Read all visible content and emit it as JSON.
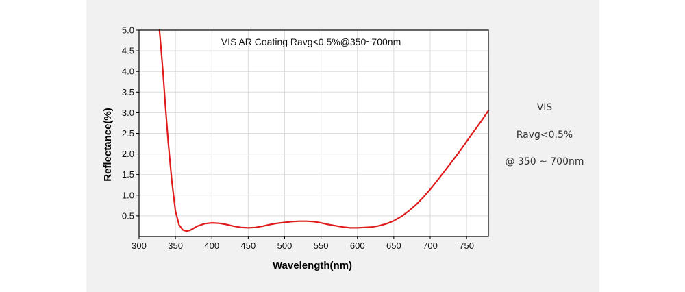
{
  "side_notes": [
    "VIS",
    "Ravg<0.5%",
    "@ 350 ~ 700nm"
  ],
  "colors": {
    "panel_background": "#f1f1f1",
    "plot_background": "#ffffff",
    "curve": "#e01b1b",
    "grid": "#dcdcdc",
    "axis": "#000000"
  },
  "chart_data": {
    "type": "line",
    "title": "VIS AR Coating Ravg<0.5%@350~700nm",
    "xlabel": "Wavelength(nm)",
    "ylabel": "Reflectance(%)",
    "xlim": [
      300,
      780
    ],
    "ylim": [
      0,
      5.0
    ],
    "x_ticks": [
      300,
      350,
      400,
      450,
      500,
      550,
      600,
      650,
      700,
      750
    ],
    "y_ticks": [
      0.5,
      1.0,
      1.5,
      2.0,
      2.5,
      3.0,
      3.5,
      4.0,
      4.5,
      5.0
    ],
    "x_tick_labels": [
      "300",
      "350",
      "400",
      "450",
      "500",
      "550",
      "600",
      "650",
      "700",
      "750"
    ],
    "y_tick_labels": [
      "0.5",
      "1.0",
      "1.5",
      "2.0",
      "2.5",
      "3.0",
      "3.5",
      "4.0",
      "4.5",
      "5.0"
    ],
    "grid": true,
    "legend": "none",
    "series": [
      {
        "x": [
          328,
          330,
          333,
          336,
          340,
          345,
          350,
          355,
          360,
          365,
          370,
          375,
          380,
          390,
          400,
          410,
          420,
          430,
          440,
          450,
          460,
          470,
          480,
          490,
          500,
          510,
          520,
          530,
          540,
          550,
          560,
          570,
          580,
          590,
          600,
          610,
          620,
          630,
          640,
          650,
          660,
          670,
          680,
          690,
          700,
          710,
          720,
          730,
          740,
          750,
          760,
          770,
          780
        ],
        "y": [
          5.0,
          4.6,
          3.95,
          3.2,
          2.3,
          1.35,
          0.62,
          0.28,
          0.16,
          0.13,
          0.15,
          0.2,
          0.25,
          0.31,
          0.33,
          0.32,
          0.29,
          0.25,
          0.22,
          0.21,
          0.22,
          0.25,
          0.29,
          0.32,
          0.34,
          0.36,
          0.37,
          0.37,
          0.36,
          0.33,
          0.29,
          0.26,
          0.23,
          0.21,
          0.21,
          0.22,
          0.23,
          0.26,
          0.31,
          0.38,
          0.48,
          0.61,
          0.76,
          0.94,
          1.14,
          1.36,
          1.59,
          1.82,
          2.05,
          2.3,
          2.55,
          2.79,
          3.05
        ]
      }
    ]
  }
}
